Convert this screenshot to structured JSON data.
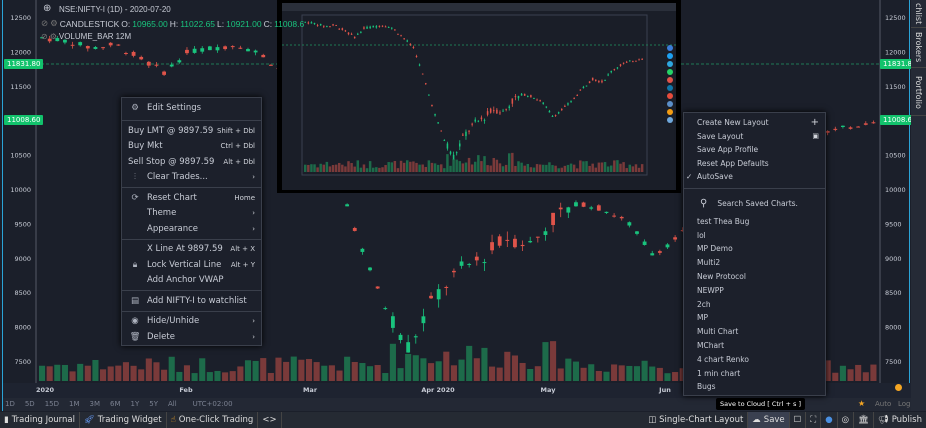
{
  "header": {
    "symbol": "NSE:NIFTY-I (1D) - 2020-07-20",
    "series1": "CANDLESTICK",
    "o_label": "O:",
    "o": "10965.00",
    "h_label": "H:",
    "h": "11022.65",
    "l_label": "L:",
    "l": "10921.00",
    "c_label": "C:",
    "c": "11008.6",
    "series2": "VOLUME_BAR",
    "series2_value": "12M"
  },
  "price_axis": {
    "ticks": [
      "12500",
      "12000",
      "11500",
      "10500",
      "10000",
      "9500",
      "9000",
      "8500",
      "8000",
      "7500"
    ],
    "tag_high": "11831.80",
    "tag_last": "11008.60"
  },
  "time_axis": [
    "2020",
    "Feb",
    "Mar",
    "Apr 2020",
    "May",
    "Jun"
  ],
  "price_path": [
    12200,
    12150,
    12050,
    12100,
    11900,
    11700,
    12000,
    12050,
    12100,
    11950,
    11650,
    11300,
    10300,
    9200,
    8300,
    7700,
    8400,
    8800,
    9000,
    9300,
    9200,
    9600,
    9800,
    9700,
    9500,
    9050,
    9300,
    9600,
    10000,
    10300,
    10200,
    10600,
    10800,
    10900,
    11000
  ],
  "colors": {
    "up": "#19c37d",
    "down": "#e0544a",
    "vol_up": "#1d6b4a",
    "vol_down": "#7a3a3a",
    "accent": "#2aa3d6",
    "tag": "#12c26c"
  },
  "context_menu": {
    "edit_settings": "Edit Settings",
    "trades": [
      {
        "label": "Buy LMT @ 9897.59",
        "shortcut": "Shift + Dbl"
      },
      {
        "label": "Buy Mkt",
        "shortcut": "Ctrl + Dbl"
      },
      {
        "label": "Sell Stop @ 9897.59",
        "shortcut": "Alt + Dbl"
      }
    ],
    "clear_trades": "Clear Trades...",
    "reset_chart": "Reset Chart",
    "reset_shortcut": "Home",
    "theme": "Theme",
    "appearance": "Appearance",
    "xline": "X Line At 9897.59",
    "xline_shortcut": "Alt + X",
    "lock": "Lock Vertical Line",
    "lock_shortcut": "Alt + Y",
    "vwap": "Add Anchor VWAP",
    "watchlist": "Add NIFTY-I to watchlist",
    "hide": "Hide/Unhide",
    "delete": "Delete"
  },
  "layout_menu": {
    "items": [
      "Create New Layout",
      "Save Layout",
      "Save App Profile",
      "Reset App Defaults",
      "AutoSave"
    ],
    "search_placeholder": "Search Saved Charts.",
    "saved": [
      "test Thea Bug",
      "lol",
      "MP Demo",
      "Multi2",
      "New Protocol",
      "NEWPP",
      "2ch",
      "MP",
      "Multi Chart",
      "MChart",
      "4 chart Renko",
      "1 min chart",
      "Bugs"
    ]
  },
  "tooltip": "Save to Cloud [ Ctrl + s ]",
  "sidebar": [
    "chlist",
    "Brokers",
    "Portfolio"
  ],
  "ranges": [
    "1D",
    "5D",
    "15D",
    "1M",
    "3M",
    "6M",
    "1Y",
    "5Y",
    "All",
    "UTC+02:00"
  ],
  "scale_opts": {
    "auto": "Auto",
    "log": "Log"
  },
  "toolbar": {
    "journal": "Trading Journal",
    "widget": "Trading Widget",
    "oneclick": "One-Click Trading",
    "code": "<>",
    "layout": "Single-Chart Layout",
    "save": "Save",
    "publish": "Publish"
  }
}
